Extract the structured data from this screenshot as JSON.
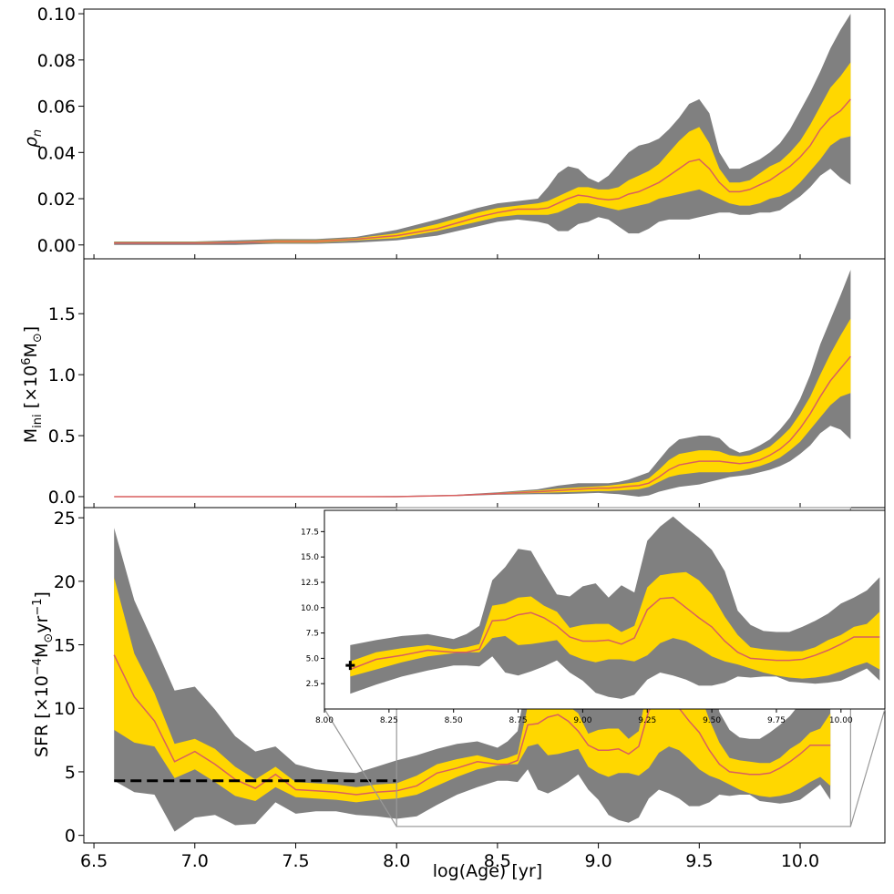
{
  "chart_data": {
    "type": "area",
    "shared_x": {
      "label": "log(Age) [yr]",
      "lim": [
        6.45,
        10.42
      ],
      "ticks": [
        6.5,
        7.0,
        7.5,
        8.0,
        8.5,
        9.0,
        9.5,
        10.0
      ],
      "tick_labels": [
        "6.5",
        "7.0",
        "7.5",
        "8.0",
        "8.5",
        "9.0",
        "9.5",
        "10.0"
      ]
    },
    "colors": {
      "outer_band": "#808080",
      "inner_band": "#ffd700",
      "median": "#d95f5f",
      "reference_line": "#000000"
    },
    "panels": [
      {
        "name": "rho_n",
        "ylabel_main": "ρ",
        "ylabel_sub": "n",
        "ylim": [
          -0.006,
          0.102
        ],
        "yticks": [
          0.0,
          0.02,
          0.04,
          0.06,
          0.08,
          0.1
        ],
        "ytick_labels": [
          "0.00",
          "0.02",
          "0.04",
          "0.06",
          "0.08",
          "0.10"
        ],
        "x": [
          6.6,
          6.8,
          7.0,
          7.2,
          7.4,
          7.6,
          7.8,
          8.0,
          8.2,
          8.4,
          8.5,
          8.6,
          8.7,
          8.75,
          8.8,
          8.85,
          8.9,
          8.95,
          9.0,
          9.05,
          9.1,
          9.15,
          9.2,
          9.25,
          9.3,
          9.35,
          9.4,
          9.45,
          9.5,
          9.55,
          9.6,
          9.65,
          9.7,
          9.75,
          9.8,
          9.85,
          9.9,
          9.95,
          10.0,
          10.05,
          10.1,
          10.15,
          10.2,
          10.25
        ],
        "outer_low": [
          0.0,
          0.0,
          0.0,
          0.0,
          0.0005,
          0.0005,
          0.001,
          0.002,
          0.004,
          0.008,
          0.01,
          0.011,
          0.01,
          0.009,
          0.006,
          0.006,
          0.009,
          0.01,
          0.012,
          0.011,
          0.008,
          0.005,
          0.005,
          0.007,
          0.01,
          0.011,
          0.011,
          0.011,
          0.012,
          0.013,
          0.014,
          0.014,
          0.013,
          0.013,
          0.014,
          0.014,
          0.015,
          0.018,
          0.021,
          0.025,
          0.03,
          0.033,
          0.029,
          0.026
        ],
        "inner_low": [
          0.0005,
          0.0005,
          0.0005,
          0.0008,
          0.001,
          0.001,
          0.002,
          0.003,
          0.006,
          0.01,
          0.012,
          0.013,
          0.013,
          0.013,
          0.014,
          0.016,
          0.018,
          0.018,
          0.017,
          0.016,
          0.015,
          0.016,
          0.017,
          0.018,
          0.02,
          0.021,
          0.022,
          0.023,
          0.024,
          0.022,
          0.02,
          0.018,
          0.017,
          0.017,
          0.018,
          0.02,
          0.021,
          0.023,
          0.027,
          0.032,
          0.037,
          0.043,
          0.046,
          0.047
        ],
        "median": [
          0.0008,
          0.0008,
          0.0008,
          0.001,
          0.0015,
          0.0015,
          0.0025,
          0.004,
          0.007,
          0.012,
          0.014,
          0.0155,
          0.0155,
          0.016,
          0.018,
          0.02,
          0.0215,
          0.021,
          0.02,
          0.0195,
          0.02,
          0.022,
          0.023,
          0.025,
          0.027,
          0.03,
          0.033,
          0.036,
          0.037,
          0.033,
          0.027,
          0.023,
          0.023,
          0.024,
          0.026,
          0.028,
          0.031,
          0.034,
          0.038,
          0.043,
          0.05,
          0.055,
          0.058,
          0.063
        ],
        "inner_high": [
          0.0012,
          0.0012,
          0.0012,
          0.0014,
          0.002,
          0.002,
          0.003,
          0.005,
          0.009,
          0.014,
          0.016,
          0.017,
          0.018,
          0.019,
          0.021,
          0.023,
          0.025,
          0.025,
          0.024,
          0.024,
          0.025,
          0.028,
          0.03,
          0.032,
          0.035,
          0.04,
          0.045,
          0.049,
          0.051,
          0.044,
          0.033,
          0.027,
          0.027,
          0.028,
          0.031,
          0.034,
          0.036,
          0.04,
          0.045,
          0.052,
          0.06,
          0.068,
          0.073,
          0.079
        ],
        "outer_high": [
          0.0015,
          0.0015,
          0.0015,
          0.002,
          0.0025,
          0.0025,
          0.0035,
          0.0065,
          0.011,
          0.016,
          0.018,
          0.019,
          0.02,
          0.025,
          0.031,
          0.034,
          0.033,
          0.029,
          0.027,
          0.03,
          0.035,
          0.04,
          0.043,
          0.044,
          0.046,
          0.05,
          0.055,
          0.061,
          0.063,
          0.057,
          0.04,
          0.033,
          0.033,
          0.035,
          0.037,
          0.04,
          0.044,
          0.05,
          0.058,
          0.066,
          0.075,
          0.085,
          0.093,
          0.1
        ]
      },
      {
        "name": "M_ini",
        "ylabel_main": "M",
        "ylabel_sub": "ini",
        "ylabel_rest": " [×10",
        "ylabel_sup": "6",
        "ylabel_unit": "M",
        "ylabel_unit_sub": "⊙",
        "ylabel_close": "]",
        "ylim": [
          -0.09,
          1.95
        ],
        "yticks": [
          0.0,
          0.5,
          1.0,
          1.5
        ],
        "ytick_labels": [
          "0.0",
          "0.5",
          "1.0",
          "1.5"
        ],
        "x": [
          6.6,
          7.0,
          7.5,
          8.0,
          8.3,
          8.5,
          8.7,
          8.8,
          8.9,
          9.0,
          9.05,
          9.1,
          9.15,
          9.2,
          9.25,
          9.3,
          9.35,
          9.4,
          9.5,
          9.55,
          9.6,
          9.65,
          9.7,
          9.75,
          9.8,
          9.85,
          9.9,
          9.95,
          10.0,
          10.05,
          10.1,
          10.15,
          10.2,
          10.25
        ],
        "outer_low": [
          0,
          0,
          0,
          0,
          0.005,
          0.015,
          0.02,
          0.02,
          0.025,
          0.03,
          0.025,
          0.02,
          0.01,
          0.0,
          0.01,
          0.04,
          0.06,
          0.08,
          0.1,
          0.12,
          0.14,
          0.16,
          0.17,
          0.18,
          0.2,
          0.22,
          0.25,
          0.29,
          0.35,
          0.42,
          0.52,
          0.58,
          0.55,
          0.47
        ],
        "inner_low": [
          0,
          0,
          0,
          0,
          0.008,
          0.02,
          0.03,
          0.035,
          0.04,
          0.045,
          0.045,
          0.05,
          0.055,
          0.06,
          0.08,
          0.12,
          0.16,
          0.18,
          0.2,
          0.2,
          0.2,
          0.2,
          0.21,
          0.23,
          0.25,
          0.28,
          0.32,
          0.38,
          0.45,
          0.55,
          0.65,
          0.75,
          0.82,
          0.85
        ],
        "median": [
          0,
          0,
          0,
          0,
          0.01,
          0.025,
          0.04,
          0.05,
          0.06,
          0.07,
          0.07,
          0.075,
          0.085,
          0.09,
          0.11,
          0.16,
          0.22,
          0.26,
          0.29,
          0.29,
          0.29,
          0.28,
          0.27,
          0.28,
          0.3,
          0.34,
          0.39,
          0.46,
          0.56,
          0.68,
          0.82,
          0.95,
          1.05,
          1.15
        ],
        "inner_high": [
          0,
          0,
          0,
          0,
          0.012,
          0.03,
          0.05,
          0.065,
          0.075,
          0.085,
          0.09,
          0.1,
          0.11,
          0.12,
          0.15,
          0.22,
          0.3,
          0.35,
          0.38,
          0.38,
          0.37,
          0.34,
          0.33,
          0.34,
          0.37,
          0.41,
          0.48,
          0.56,
          0.68,
          0.82,
          1.0,
          1.17,
          1.32,
          1.46
        ],
        "outer_high": [
          0,
          0,
          0,
          0.005,
          0.015,
          0.035,
          0.06,
          0.09,
          0.11,
          0.11,
          0.11,
          0.12,
          0.14,
          0.17,
          0.2,
          0.3,
          0.4,
          0.47,
          0.5,
          0.5,
          0.48,
          0.4,
          0.36,
          0.38,
          0.42,
          0.47,
          0.55,
          0.65,
          0.8,
          1.0,
          1.25,
          1.45,
          1.65,
          1.86
        ]
      },
      {
        "name": "SFR",
        "ylabel_main": "SFR [×10",
        "ylabel_sup": "−4",
        "ylabel_unit": "M",
        "ylabel_unit_sub": "⊙",
        "ylabel_rest": "yr",
        "ylabel_sup2": "−1",
        "ylabel_close": "]",
        "ylim": [
          -0.6,
          25.8
        ],
        "yticks": [
          0,
          5,
          10,
          15,
          20,
          25
        ],
        "ytick_labels": [
          "0",
          "5",
          "10",
          "15",
          "20",
          "25"
        ],
        "x": [
          6.6,
          6.7,
          6.8,
          6.9,
          7.0,
          7.1,
          7.2,
          7.3,
          7.4,
          7.5,
          7.6,
          7.7,
          7.8,
          7.9,
          8.0,
          8.1,
          8.2,
          8.3,
          8.4,
          8.5,
          8.55,
          8.6,
          8.65,
          8.7,
          8.75,
          8.8,
          8.85,
          8.9,
          8.95,
          9.0,
          9.05,
          9.1,
          9.15,
          9.2,
          9.25,
          9.3,
          9.35,
          9.4,
          9.45,
          9.5,
          9.55,
          9.6,
          9.65,
          9.7,
          9.75,
          9.8,
          9.85,
          9.9,
          9.95,
          10.0,
          10.05,
          10.1,
          10.15
        ],
        "outer_low": [
          4.3,
          3.4,
          3.2,
          0.3,
          1.4,
          1.6,
          0.8,
          0.9,
          2.6,
          1.7,
          1.9,
          1.9,
          1.6,
          1.5,
          1.3,
          1.5,
          2.4,
          3.2,
          3.8,
          4.3,
          4.3,
          4.2,
          5.2,
          3.6,
          3.3,
          3.7,
          4.2,
          4.8,
          3.6,
          2.8,
          1.6,
          1.2,
          1.0,
          1.4,
          2.9,
          3.6,
          3.3,
          2.9,
          2.3,
          2.3,
          2.6,
          3.2,
          3.1,
          3.2,
          3.2,
          2.7,
          2.6,
          2.5,
          2.6,
          2.8,
          3.4,
          4.0,
          2.8
        ],
        "inner_low": [
          8.3,
          7.3,
          7.0,
          4.5,
          5.2,
          4.2,
          3.1,
          2.7,
          3.8,
          3.0,
          2.9,
          2.8,
          2.6,
          2.8,
          2.9,
          3.2,
          3.9,
          4.6,
          5.2,
          5.5,
          5.6,
          5.6,
          7.0,
          7.2,
          6.3,
          6.4,
          6.6,
          6.8,
          5.4,
          4.9,
          4.6,
          4.9,
          4.9,
          4.7,
          5.3,
          6.5,
          7.0,
          6.7,
          6.0,
          5.2,
          4.7,
          4.4,
          4.0,
          3.6,
          3.3,
          3.1,
          3.0,
          3.1,
          3.3,
          3.7,
          4.2,
          4.6,
          3.9
        ],
        "median": [
          14.2,
          10.9,
          9.0,
          5.8,
          6.6,
          5.6,
          4.4,
          3.7,
          4.8,
          3.6,
          3.5,
          3.4,
          3.2,
          3.4,
          3.5,
          3.9,
          4.9,
          5.3,
          5.8,
          5.6,
          5.6,
          5.9,
          8.7,
          8.8,
          9.3,
          9.5,
          9.0,
          8.2,
          7.1,
          6.7,
          6.7,
          6.8,
          6.4,
          7.0,
          9.8,
          10.9,
          11.0,
          10.0,
          9.0,
          8.1,
          6.7,
          5.6,
          5.0,
          4.9,
          4.8,
          4.8,
          4.9,
          5.3,
          5.8,
          6.4,
          7.1,
          7.1,
          7.1
        ],
        "inner_high": [
          20.3,
          14.3,
          11.2,
          7.2,
          7.6,
          6.8,
          5.4,
          4.4,
          5.4,
          4.2,
          4.1,
          4.0,
          3.8,
          4.0,
          4.1,
          4.7,
          5.6,
          6.0,
          6.3,
          5.9,
          6.1,
          6.4,
          10.2,
          10.4,
          11.0,
          11.1,
          10.2,
          9.6,
          8.0,
          8.3,
          8.4,
          8.4,
          7.6,
          8.2,
          12.0,
          13.2,
          13.4,
          13.5,
          12.7,
          11.3,
          9.1,
          7.3,
          6.1,
          5.9,
          5.8,
          5.7,
          5.7,
          6.1,
          6.8,
          7.3,
          8.1,
          8.4,
          9.6
        ],
        "outer_high": [
          24.2,
          18.5,
          15.0,
          11.4,
          11.7,
          9.9,
          7.8,
          6.6,
          7.0,
          5.6,
          5.2,
          5.0,
          4.9,
          5.4,
          5.9,
          6.3,
          6.8,
          7.2,
          7.4,
          6.9,
          7.4,
          8.2,
          12.7,
          14.0,
          15.8,
          15.6,
          13.4,
          11.3,
          11.1,
          12.1,
          12.4,
          11.0,
          12.2,
          11.5,
          16.6,
          18.0,
          19.0,
          17.9,
          16.9,
          15.7,
          13.6,
          9.7,
          8.3,
          7.7,
          7.6,
          7.6,
          8.1,
          8.7,
          9.4,
          10.4,
          11.0,
          11.7,
          13.0
        ],
        "reference_line": {
          "x": [
            6.6,
            8.0
          ],
          "y": 4.3,
          "style": "dashed"
        },
        "inset": {
          "xlim": [
            8.0,
            10.17
          ],
          "ylim": [
            0,
            19.6
          ],
          "xticks": [
            8.0,
            8.25,
            8.5,
            8.75,
            9.0,
            9.25,
            9.5,
            9.75,
            10.0
          ],
          "xtick_labels": [
            "8.00",
            "8.25",
            "8.50",
            "8.75",
            "9.00",
            "9.25",
            "9.50",
            "9.75",
            "10.00"
          ],
          "yticks": [
            2.5,
            5.0,
            7.5,
            10.0,
            12.5,
            15.0,
            17.5
          ],
          "ytick_labels": [
            "2.5",
            "5.0",
            "7.5",
            "10.0",
            "12.5",
            "15.0",
            "17.5"
          ],
          "marker": {
            "x": 8.1,
            "y": 4.3,
            "symbol": "plus"
          },
          "zoom_region": {
            "x": [
              8.0,
              10.25
            ],
            "y": [
              0.7,
              25.8
            ]
          }
        }
      }
    ]
  }
}
